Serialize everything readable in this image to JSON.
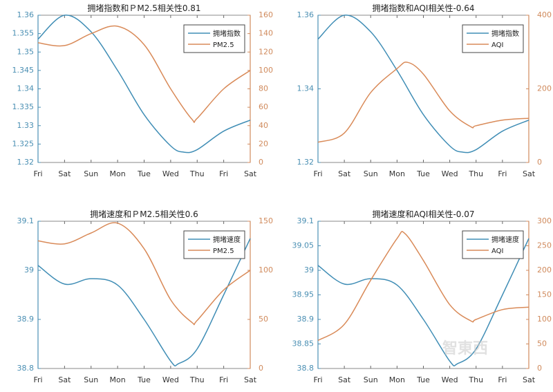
{
  "colors": {
    "left": "#3f8db5",
    "right": "#d98a58",
    "axis_left": "#4a8fb3",
    "axis_right": "#d08a5c"
  },
  "watermark": "智東西",
  "chart_data": [
    {
      "type": "line",
      "title": "拥堵指数和ＰM2.5相关性0.81",
      "x_ticks": [
        "Fri",
        "Sat",
        "Sun",
        "Mon",
        "Tue",
        "Wed",
        "Thu",
        "Fri",
        "Sat"
      ],
      "ylim_left": [
        1.32,
        1.36
      ],
      "yticks_left": [
        "1.32",
        "1.325",
        "1.33",
        "1.335",
        "1.34",
        "1.345",
        "1.35",
        "1.355",
        "1.36"
      ],
      "ylim_right": [
        0,
        160
      ],
      "yticks_right": [
        "0",
        "20",
        "40",
        "60",
        "80",
        "100",
        "120",
        "140",
        "160"
      ],
      "legend_position": "top-right",
      "series": [
        {
          "name": "拥堵指数",
          "axis": "left",
          "points": [
            [
              0,
              1.3535
            ],
            [
              1,
              1.36
            ],
            [
              2,
              1.3555
            ],
            [
              3,
              1.345
            ],
            [
              4,
              1.333
            ],
            [
              5,
              1.3245
            ],
            [
              5.5,
              1.3228
            ],
            [
              6,
              1.3235
            ],
            [
              7,
              1.3285
            ],
            [
              8,
              1.3315
            ]
          ]
        },
        {
          "name": "PM2.5",
          "axis": "right",
          "points": [
            [
              0,
              130
            ],
            [
              1,
              127
            ],
            [
              2,
              140
            ],
            [
              3,
              148
            ],
            [
              4,
              128
            ],
            [
              5,
              80
            ],
            [
              5.8,
              47
            ],
            [
              6,
              48
            ],
            [
              7,
              80
            ],
            [
              8,
              100
            ]
          ]
        }
      ]
    },
    {
      "type": "line",
      "title": "拥堵指数和AQI相关性-0.64",
      "x_ticks": [
        "Fri",
        "Sat",
        "Sun",
        "Mon",
        "Tue",
        "Wed",
        "Thu",
        "Fri",
        "Sat"
      ],
      "ylim_left": [
        1.32,
        1.36
      ],
      "yticks_left": [
        "1.32",
        "1.34",
        "1.36"
      ],
      "ylim_right": [
        0,
        400
      ],
      "yticks_right": [
        "0",
        "200",
        "400"
      ],
      "legend_position": "top-right",
      "series": [
        {
          "name": "拥堵指数",
          "axis": "left",
          "points": [
            [
              0,
              1.3535
            ],
            [
              1,
              1.36
            ],
            [
              2,
              1.3555
            ],
            [
              3,
              1.345
            ],
            [
              4,
              1.333
            ],
            [
              5,
              1.3245
            ],
            [
              5.5,
              1.3228
            ],
            [
              6,
              1.3235
            ],
            [
              7,
              1.3285
            ],
            [
              8,
              1.3315
            ]
          ]
        },
        {
          "name": "AQI",
          "axis": "right",
          "points": [
            [
              0,
              55
            ],
            [
              1,
              80
            ],
            [
              2,
              190
            ],
            [
              3,
              255
            ],
            [
              3.4,
              272
            ],
            [
              4,
              240
            ],
            [
              5,
              140
            ],
            [
              5.8,
              97
            ],
            [
              6,
              100
            ],
            [
              7,
              115
            ],
            [
              8,
              120
            ]
          ]
        }
      ]
    },
    {
      "type": "line",
      "title": "拥堵速度和ＰM2.5相关性0.6",
      "x_ticks": [
        "Fri",
        "Sat",
        "Sun",
        "Mon",
        "Tue",
        "Wed",
        "Thu",
        "Fri",
        "Sat"
      ],
      "ylim_left": [
        38.8,
        39.1
      ],
      "yticks_left": [
        "38.8",
        "38.9",
        "39",
        "39.1"
      ],
      "ylim_right": [
        0,
        150
      ],
      "yticks_right": [
        "0",
        "50",
        "100",
        "150"
      ],
      "legend_position": "top-right",
      "series": [
        {
          "name": "拥堵速度",
          "axis": "left",
          "points": [
            [
              0,
              39.01
            ],
            [
              1,
              38.972
            ],
            [
              2,
              38.983
            ],
            [
              3,
              38.97
            ],
            [
              4,
              38.9
            ],
            [
              5,
              38.815
            ],
            [
              5.3,
              38.81
            ],
            [
              6,
              38.84
            ],
            [
              7,
              38.95
            ],
            [
              8,
              39.065
            ]
          ]
        },
        {
          "name": "PM2.5",
          "axis": "right",
          "points": [
            [
              0,
              130
            ],
            [
              1,
              127
            ],
            [
              2,
              138
            ],
            [
              3,
              148
            ],
            [
              4,
              122
            ],
            [
              5,
              70
            ],
            [
              5.8,
              47
            ],
            [
              6,
              49
            ],
            [
              7,
              80
            ],
            [
              8,
              100
            ]
          ]
        }
      ]
    },
    {
      "type": "line",
      "title": "拥堵速度和AQI相关性-0.07",
      "x_ticks": [
        "Fri",
        "Sat",
        "Sun",
        "Mon",
        "Tue",
        "Wed",
        "Thu",
        "Fri",
        "Sat"
      ],
      "ylim_left": [
        38.8,
        39.1
      ],
      "yticks_left": [
        "38.8",
        "38.85",
        "38.9",
        "38.95",
        "39",
        "39.05",
        "39.1"
      ],
      "ylim_right": [
        0,
        300
      ],
      "yticks_right": [
        "0",
        "50",
        "100",
        "150",
        "200",
        "250",
        "300"
      ],
      "legend_position": "top-right",
      "series": [
        {
          "name": "拥堵速度",
          "axis": "left",
          "points": [
            [
              0,
              39.01
            ],
            [
              1,
              38.972
            ],
            [
              2,
              38.983
            ],
            [
              3,
              38.97
            ],
            [
              4,
              38.9
            ],
            [
              5,
              38.815
            ],
            [
              5.3,
              38.81
            ],
            [
              6,
              38.84
            ],
            [
              7,
              38.95
            ],
            [
              8,
              39.065
            ]
          ]
        },
        {
          "name": "AQI",
          "axis": "right",
          "points": [
            [
              0,
              57
            ],
            [
              1,
              90
            ],
            [
              2,
              180
            ],
            [
              3,
              265
            ],
            [
              3.3,
              275
            ],
            [
              4,
              220
            ],
            [
              5,
              130
            ],
            [
              5.8,
              97
            ],
            [
              6,
              100
            ],
            [
              7,
              120
            ],
            [
              8,
              125
            ]
          ]
        }
      ]
    }
  ]
}
